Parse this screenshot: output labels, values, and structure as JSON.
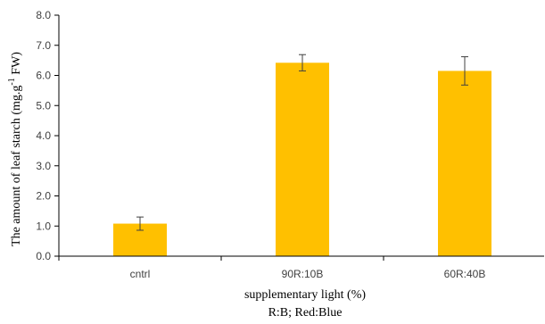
{
  "chart_data": {
    "type": "bar",
    "categories": [
      "cntrl",
      "90R:10B",
      "60R:40B"
    ],
    "values": [
      1.08,
      6.42,
      6.15
    ],
    "error": [
      0.22,
      0.27,
      0.47
    ],
    "ylabel_main": "The amount of leaf starch (mg.g",
    "ylabel_sup": "-1",
    "ylabel_end": " FW)",
    "xlabel": "supplementary light (%)",
    "note": "R:B; Red:Blue",
    "ylim": [
      0,
      8
    ],
    "yticks": [
      "0.0",
      "1.0",
      "2.0",
      "3.0",
      "4.0",
      "5.0",
      "6.0",
      "7.0",
      "8.0"
    ],
    "ytick_values": [
      0,
      1,
      2,
      3,
      4,
      5,
      6,
      7,
      8
    ],
    "grid": false,
    "legend": "none",
    "bar_color": "#FFC000",
    "error_color": "#404040",
    "axis_color": "#000000"
  }
}
